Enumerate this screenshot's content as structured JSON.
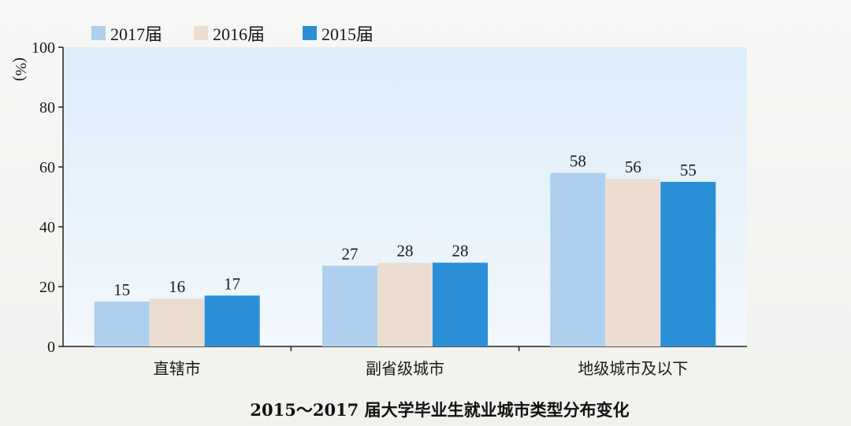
{
  "chart_data": {
    "type": "bar",
    "title": "2015～2017 届大学毕业生就业城市类型分布变化",
    "ylabel": "(%)",
    "xlabel": "",
    "ylim": [
      0,
      100
    ],
    "yticks": [
      0,
      20,
      40,
      60,
      80,
      100
    ],
    "categories": [
      "直辖市",
      "副省级城市",
      "地级城市及以下"
    ],
    "series": [
      {
        "name": "2017届",
        "values": [
          15,
          27,
          58
        ],
        "color": "#aed0ee"
      },
      {
        "name": "2016届",
        "values": [
          16,
          28,
          56
        ],
        "color": "#ecddd3"
      },
      {
        "name": "2015届",
        "values": [
          17,
          28,
          55
        ],
        "color": "#2a8fd6"
      }
    ],
    "legend_position": "top-left",
    "grid": false,
    "plot_background": "#e6f2fb"
  }
}
